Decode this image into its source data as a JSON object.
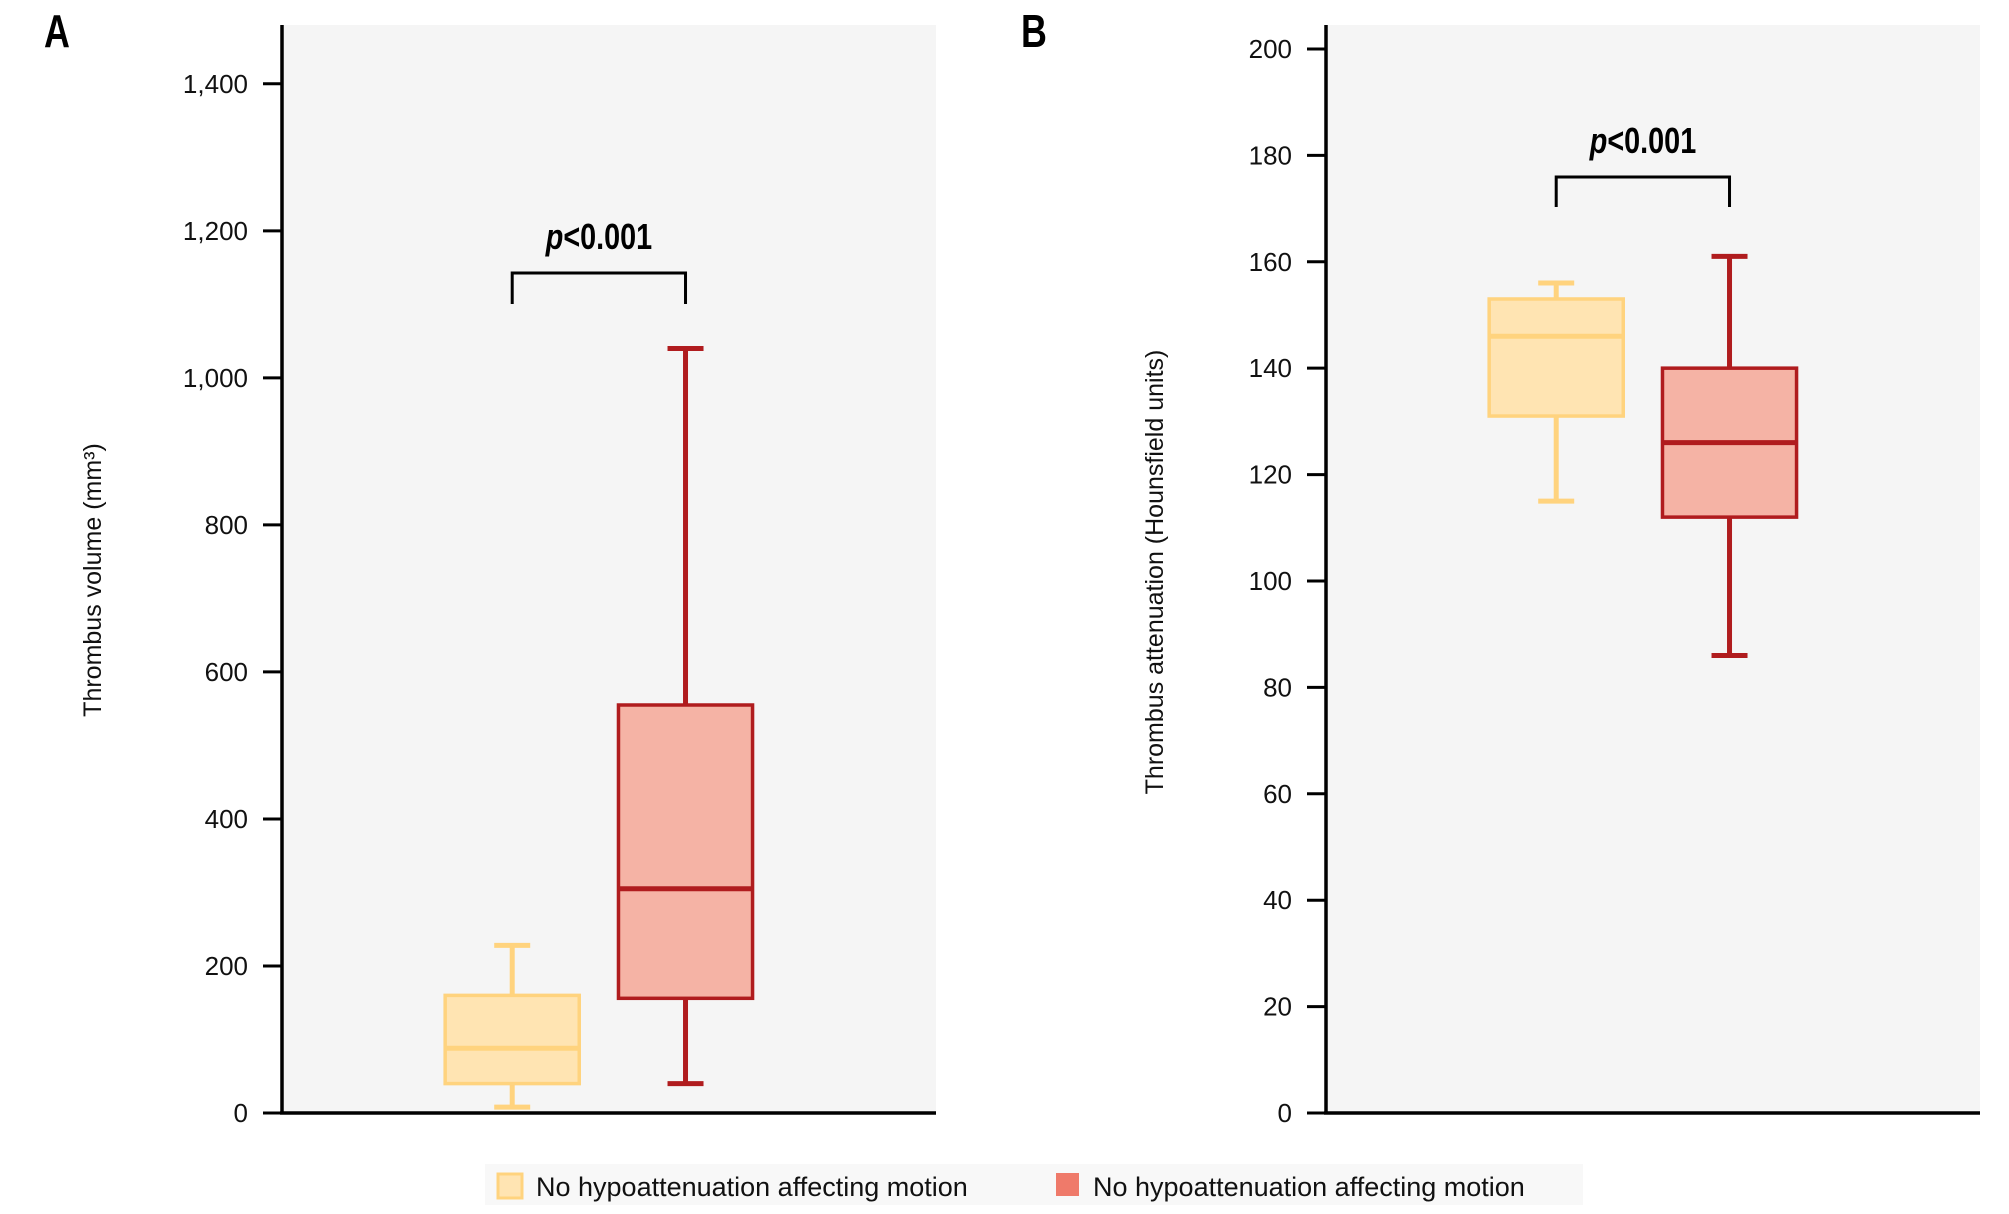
{
  "chart_data": [
    {
      "panel": "A",
      "type": "box",
      "title": "",
      "xlabel": "",
      "ylabel": "Thrombus volume (mm³)",
      "ylim": [
        0,
        1480
      ],
      "yticks": [
        0,
        200,
        400,
        600,
        800,
        1000,
        1200,
        1400
      ],
      "ytick_labels": [
        "0",
        "200",
        "400",
        "600",
        "800",
        "1,000",
        "1,200",
        "1,400"
      ],
      "grid": false,
      "series": [
        {
          "name": "No hypoattenuation affecting motion",
          "color_key": "yellow",
          "min": 8,
          "q1": 40,
          "median": 88,
          "q3": 160,
          "max": 228
        },
        {
          "name": "No hypoattenuation affecting motion",
          "color_key": "red",
          "min": 40,
          "q1": 156,
          "median": 305,
          "q3": 555,
          "max": 1040
        }
      ],
      "annotation": {
        "p_prefix": "p",
        "p_text": "<0.001"
      }
    },
    {
      "panel": "B",
      "type": "box",
      "title": "",
      "xlabel": "",
      "ylabel": "Thrombus attenuation (Hounsfield units)",
      "ylim": [
        0,
        204.5
      ],
      "yticks": [
        0,
        20,
        40,
        60,
        80,
        100,
        120,
        140,
        160,
        180,
        200
      ],
      "ytick_labels": [
        "0",
        "20",
        "40",
        "60",
        "80",
        "100",
        "120",
        "140",
        "160",
        "180",
        "200"
      ],
      "grid": false,
      "series": [
        {
          "name": "No hypoattenuation affecting motion",
          "color_key": "yellow",
          "min": 115,
          "q1": 131,
          "median": 146,
          "q3": 153,
          "max": 156
        },
        {
          "name": "No hypoattenuation affecting motion",
          "color_key": "red",
          "min": 86,
          "q1": 112,
          "median": 126,
          "q3": 140,
          "max": 161
        }
      ],
      "annotation": {
        "p_prefix": "p",
        "p_text": "<0.001"
      }
    }
  ],
  "colors": {
    "yellow": {
      "stroke": "#FFD37E",
      "fill": "#FFE4B2"
    },
    "red": {
      "stroke": "#B01C1E",
      "fill": "#F5B3A5"
    },
    "legend_red_swatch": "#EF7A6A",
    "plot_background": "#F5F5F5",
    "legend_background": "#F8F8F8"
  },
  "legend": {
    "position": "bottom-center",
    "items": [
      {
        "label": "No hypoattenuation affecting motion",
        "color_key": "yellow"
      },
      {
        "label": "No hypoattenuation affecting motion",
        "color_key": "red"
      }
    ]
  },
  "panel_labels": [
    "A",
    "B"
  ]
}
